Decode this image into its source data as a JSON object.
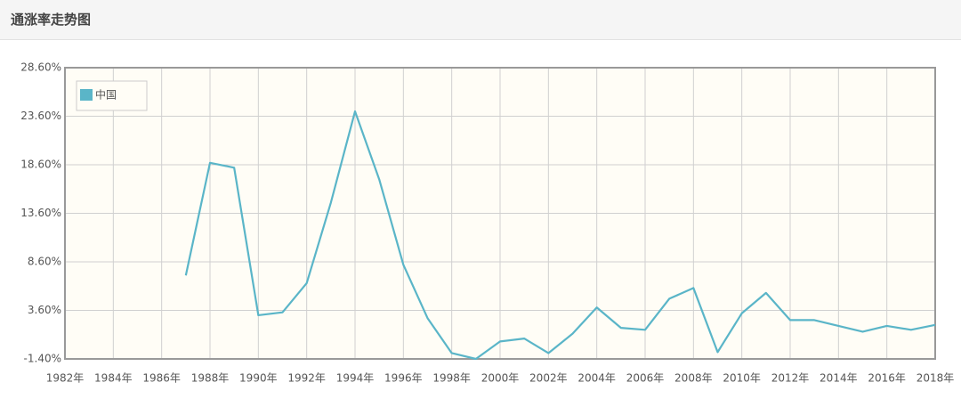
{
  "chart_data": {
    "type": "line",
    "title": "通涨率走势图",
    "x": [
      1987,
      1988,
      1989,
      1990,
      1991,
      1992,
      1993,
      1994,
      1995,
      1996,
      1997,
      1998,
      1999,
      2000,
      2001,
      2002,
      2003,
      2004,
      2005,
      2006,
      2007,
      2008,
      2009,
      2010,
      2011,
      2012,
      2013,
      2014,
      2015,
      2016,
      2017,
      2018
    ],
    "series": [
      {
        "name": "中国",
        "color": "#5ab5c8",
        "values": [
          7.2,
          18.8,
          18.3,
          3.1,
          3.4,
          6.4,
          14.7,
          24.1,
          17.1,
          8.3,
          2.8,
          -0.8,
          -1.4,
          0.4,
          0.7,
          -0.8,
          1.2,
          3.9,
          1.8,
          1.6,
          4.8,
          5.9,
          -0.7,
          3.3,
          5.4,
          2.6,
          2.6,
          2.0,
          1.4,
          2.0,
          1.6,
          2.1
        ]
      }
    ],
    "xlim": [
      1982,
      2018
    ],
    "xticks": [
      {
        "value": 1982,
        "label": "1982年"
      },
      {
        "value": 1984,
        "label": "1984年"
      },
      {
        "value": 1986,
        "label": "1986年"
      },
      {
        "value": 1988,
        "label": "1988年"
      },
      {
        "value": 1990,
        "label": "1990年"
      },
      {
        "value": 1992,
        "label": "1992年"
      },
      {
        "value": 1994,
        "label": "1994年"
      },
      {
        "value": 1996,
        "label": "1996年"
      },
      {
        "value": 1998,
        "label": "1998年"
      },
      {
        "value": 2000,
        "label": "2000年"
      },
      {
        "value": 2002,
        "label": "2002年"
      },
      {
        "value": 2004,
        "label": "2004年"
      },
      {
        "value": 2006,
        "label": "2006年"
      },
      {
        "value": 2008,
        "label": "2008年"
      },
      {
        "value": 2010,
        "label": "2010年"
      },
      {
        "value": 2012,
        "label": "2012年"
      },
      {
        "value": 2014,
        "label": "2014年"
      },
      {
        "value": 2016,
        "label": "2016年"
      },
      {
        "value": 2018,
        "label": "2018年"
      }
    ],
    "ylim": [
      -1.4,
      28.6
    ],
    "yticks": [
      {
        "value": -1.4,
        "label": "-1.40%"
      },
      {
        "value": 3.6,
        "label": "3.60%"
      },
      {
        "value": 8.6,
        "label": "8.60%"
      },
      {
        "value": 13.6,
        "label": "13.60%"
      },
      {
        "value": 18.6,
        "label": "18.60%"
      },
      {
        "value": 23.6,
        "label": "23.60%"
      },
      {
        "value": 28.6,
        "label": "28.60%"
      }
    ],
    "grid": true,
    "legend": "top-left"
  }
}
